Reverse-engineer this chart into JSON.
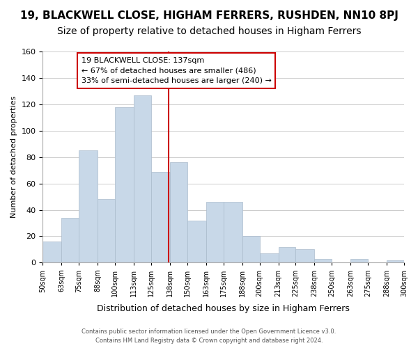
{
  "title": "19, BLACKWELL CLOSE, HIGHAM FERRERS, RUSHDEN, NN10 8PJ",
  "subtitle": "Size of property relative to detached houses in Higham Ferrers",
  "xlabel": "Distribution of detached houses by size in Higham Ferrers",
  "ylabel": "Number of detached properties",
  "bin_edges": [
    50,
    63,
    75,
    88,
    100,
    113,
    125,
    138,
    150,
    163,
    175,
    188,
    200,
    213,
    225,
    238,
    250,
    263,
    275,
    288,
    300
  ],
  "bar_heights": [
    16,
    34,
    85,
    48,
    118,
    127,
    69,
    76,
    32,
    46,
    46,
    20,
    7,
    12,
    10,
    3,
    0,
    3,
    0,
    2
  ],
  "bar_color": "#c8d8e8",
  "bar_edgecolor": "#aabbcc",
  "property_line_x": 137,
  "property_line_color": "#cc0000",
  "ylim": [
    0,
    160
  ],
  "yticks": [
    0,
    20,
    40,
    60,
    80,
    100,
    120,
    140,
    160
  ],
  "annotation_title": "19 BLACKWELL CLOSE: 137sqm",
  "annotation_line1": "← 67% of detached houses are smaller (486)",
  "annotation_line2": "33% of semi-detached houses are larger (240) →",
  "annotation_box_color": "#ffffff",
  "annotation_box_edgecolor": "#cc0000",
  "footer_line1": "Contains HM Land Registry data © Crown copyright and database right 2024.",
  "footer_line2": "Contains public sector information licensed under the Open Government Licence v3.0.",
  "background_color": "#ffffff",
  "grid_color": "#cccccc",
  "title_fontsize": 11,
  "subtitle_fontsize": 10
}
